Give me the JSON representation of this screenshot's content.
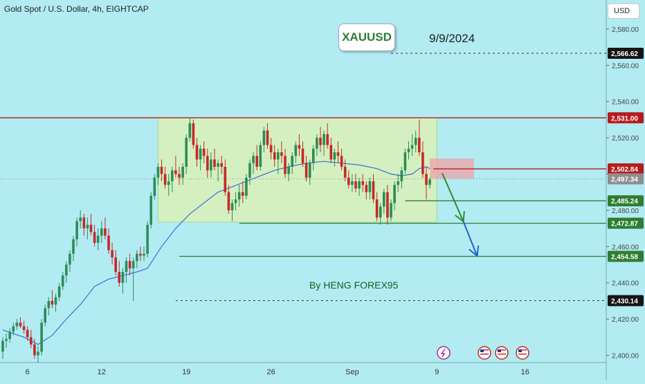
{
  "chart_title": "Gold Spot / U.S. Dollar, 4h, EIGHTCAP",
  "currency_label": "USD",
  "symbol_label": "XAUUSD",
  "date_label": "9/9/2024",
  "author_label": "By HENG FOREX95",
  "colors": {
    "background": "#b2ebf2",
    "up": "#2e8b57",
    "down": "#c62828",
    "ma": "#3b6fd6",
    "range_box": "#d4f0c0",
    "resistance": "#b71c1c",
    "support": "#2e7d32"
  },
  "event_icons": [
    "lightning-icon",
    "us-flag-icon",
    "us-flag-icon",
    "us-flag-icon"
  ],
  "chart_data": {
    "type": "candlestick",
    "title": "Gold Spot / U.S. Dollar, 4h, EIGHTCAP",
    "ylim": [
      2396,
      2596
    ],
    "y_ticks": [
      "2,400.00",
      "2,420.00",
      "2,440.00",
      "2,460.00",
      "2,480.00",
      "2,500.00",
      "2,520.00",
      "2,540.00",
      "2,560.00",
      "2,580.00"
    ],
    "x_ticks": [
      "6",
      "12",
      "19",
      "26",
      "Sep",
      "9",
      "16"
    ],
    "price_levels": [
      {
        "label": "2,566.62",
        "value": 2566.62,
        "style": "dotted",
        "kind": "dark"
      },
      {
        "label": "2,531.00",
        "value": 2531.0,
        "style": "solid",
        "kind": "resistance"
      },
      {
        "label": "2,502.84",
        "value": 2502.84,
        "style": "solid",
        "kind": "resistance"
      },
      {
        "label": "2,497.34",
        "value": 2497.34,
        "style": "dotted",
        "kind": "current"
      },
      {
        "label": "2,485.24",
        "value": 2485.24,
        "style": "solid",
        "kind": "support"
      },
      {
        "label": "2,472.87",
        "value": 2472.87,
        "style": "solid",
        "kind": "support"
      },
      {
        "label": "2,454.58",
        "value": 2454.58,
        "style": "solid",
        "kind": "support"
      },
      {
        "label": "2,430.14",
        "value": 2430.14,
        "style": "dotted",
        "kind": "dark"
      }
    ],
    "ohlc": [
      [
        2402,
        2410,
        2398,
        2408
      ],
      [
        2408,
        2412,
        2404,
        2409
      ],
      [
        2409,
        2415,
        2407,
        2413
      ],
      [
        2413,
        2418,
        2411,
        2416
      ],
      [
        2416,
        2420,
        2414,
        2418
      ],
      [
        2418,
        2421,
        2415,
        2416
      ],
      [
        2416,
        2419,
        2412,
        2414
      ],
      [
        2414,
        2416,
        2408,
        2410
      ],
      [
        2410,
        2414,
        2404,
        2406
      ],
      [
        2406,
        2409,
        2398,
        2400
      ],
      [
        2400,
        2405,
        2396,
        2402
      ],
      [
        2402,
        2420,
        2400,
        2418
      ],
      [
        2418,
        2428,
        2416,
        2426
      ],
      [
        2426,
        2432,
        2422,
        2430
      ],
      [
        2430,
        2436,
        2426,
        2428
      ],
      [
        2428,
        2434,
        2424,
        2432
      ],
      [
        2432,
        2440,
        2430,
        2438
      ],
      [
        2438,
        2446,
        2436,
        2444
      ],
      [
        2444,
        2452,
        2440,
        2450
      ],
      [
        2450,
        2458,
        2446,
        2456
      ],
      [
        2456,
        2466,
        2452,
        2464
      ],
      [
        2464,
        2476,
        2460,
        2474
      ],
      [
        2474,
        2480,
        2470,
        2476
      ],
      [
        2476,
        2478,
        2466,
        2470
      ],
      [
        2470,
        2476,
        2464,
        2472
      ],
      [
        2472,
        2478,
        2466,
        2468
      ],
      [
        2468,
        2472,
        2460,
        2462
      ],
      [
        2462,
        2470,
        2458,
        2466
      ],
      [
        2466,
        2474,
        2462,
        2470
      ],
      [
        2470,
        2476,
        2464,
        2466
      ],
      [
        2466,
        2470,
        2456,
        2458
      ],
      [
        2458,
        2462,
        2450,
        2454
      ],
      [
        2454,
        2458,
        2444,
        2446
      ],
      [
        2446,
        2452,
        2438,
        2440
      ],
      [
        2440,
        2448,
        2434,
        2446
      ],
      [
        2446,
        2454,
        2440,
        2452
      ],
      [
        2452,
        2456,
        2444,
        2448
      ],
      [
        2448,
        2454,
        2430,
        2452
      ],
      [
        2452,
        2458,
        2448,
        2456
      ],
      [
        2456,
        2460,
        2452,
        2455
      ],
      [
        2455,
        2460,
        2452,
        2456
      ],
      [
        2456,
        2474,
        2454,
        2472
      ],
      [
        2472,
        2490,
        2470,
        2488
      ],
      [
        2488,
        2500,
        2486,
        2498
      ],
      [
        2498,
        2506,
        2494,
        2504
      ],
      [
        2504,
        2508,
        2496,
        2500
      ],
      [
        2500,
        2504,
        2492,
        2494
      ],
      [
        2494,
        2500,
        2488,
        2496
      ],
      [
        2496,
        2504,
        2490,
        2502
      ],
      [
        2502,
        2510,
        2498,
        2500
      ],
      [
        2500,
        2504,
        2494,
        2498
      ],
      [
        2498,
        2506,
        2494,
        2504
      ],
      [
        2504,
        2522,
        2500,
        2520
      ],
      [
        2520,
        2531,
        2518,
        2528
      ],
      [
        2528,
        2530,
        2514,
        2516
      ],
      [
        2516,
        2520,
        2504,
        2508
      ],
      [
        2508,
        2516,
        2502,
        2514
      ],
      [
        2514,
        2518,
        2506,
        2510
      ],
      [
        2510,
        2514,
        2498,
        2502
      ],
      [
        2502,
        2512,
        2498,
        2508
      ],
      [
        2508,
        2514,
        2502,
        2504
      ],
      [
        2504,
        2508,
        2496,
        2506
      ],
      [
        2506,
        2510,
        2500,
        2504
      ],
      [
        2504,
        2508,
        2488,
        2490
      ],
      [
        2490,
        2494,
        2478,
        2480
      ],
      [
        2480,
        2486,
        2474,
        2484
      ],
      [
        2484,
        2490,
        2480,
        2486
      ],
      [
        2486,
        2494,
        2482,
        2490
      ],
      [
        2490,
        2496,
        2484,
        2488
      ],
      [
        2488,
        2500,
        2486,
        2498
      ],
      [
        2498,
        2508,
        2494,
        2506
      ],
      [
        2506,
        2512,
        2500,
        2510
      ],
      [
        2510,
        2516,
        2502,
        2504
      ],
      [
        2504,
        2518,
        2502,
        2516
      ],
      [
        2516,
        2526,
        2512,
        2524
      ],
      [
        2524,
        2528,
        2514,
        2516
      ],
      [
        2516,
        2520,
        2508,
        2512
      ],
      [
        2512,
        2516,
        2504,
        2508
      ],
      [
        2508,
        2514,
        2500,
        2512
      ],
      [
        2512,
        2518,
        2506,
        2510
      ],
      [
        2510,
        2514,
        2498,
        2500
      ],
      [
        2500,
        2506,
        2496,
        2504
      ],
      [
        2504,
        2512,
        2500,
        2510
      ],
      [
        2510,
        2518,
        2506,
        2516
      ],
      [
        2516,
        2522,
        2510,
        2514
      ],
      [
        2514,
        2518,
        2504,
        2506
      ],
      [
        2506,
        2510,
        2496,
        2498
      ],
      [
        2498,
        2508,
        2494,
        2506
      ],
      [
        2506,
        2516,
        2502,
        2514
      ],
      [
        2514,
        2522,
        2510,
        2520
      ],
      [
        2520,
        2526,
        2512,
        2516
      ],
      [
        2516,
        2524,
        2510,
        2522
      ],
      [
        2522,
        2528,
        2514,
        2516
      ],
      [
        2516,
        2520,
        2506,
        2508
      ],
      [
        2508,
        2514,
        2504,
        2512
      ],
      [
        2512,
        2518,
        2506,
        2510
      ],
      [
        2510,
        2514,
        2502,
        2504
      ],
      [
        2504,
        2508,
        2496,
        2498
      ],
      [
        2498,
        2502,
        2492,
        2494
      ],
      [
        2494,
        2500,
        2490,
        2496
      ],
      [
        2496,
        2500,
        2490,
        2492
      ],
      [
        2492,
        2498,
        2488,
        2496
      ],
      [
        2496,
        2500,
        2490,
        2494
      ],
      [
        2494,
        2496,
        2486,
        2490
      ],
      [
        2490,
        2498,
        2486,
        2496
      ],
      [
        2496,
        2500,
        2484,
        2486
      ],
      [
        2486,
        2490,
        2474,
        2476
      ],
      [
        2476,
        2484,
        2472,
        2482
      ],
      [
        2482,
        2492,
        2478,
        2490
      ],
      [
        2490,
        2494,
        2472,
        2476
      ],
      [
        2476,
        2486,
        2474,
        2484
      ],
      [
        2484,
        2496,
        2480,
        2494
      ],
      [
        2494,
        2500,
        2490,
        2496
      ],
      [
        2496,
        2504,
        2492,
        2502
      ],
      [
        2502,
        2514,
        2500,
        2512
      ],
      [
        2512,
        2518,
        2508,
        2514
      ],
      [
        2514,
        2522,
        2510,
        2516
      ],
      [
        2516,
        2524,
        2512,
        2520
      ],
      [
        2520,
        2530,
        2510,
        2512
      ],
      [
        2512,
        2518,
        2498,
        2500
      ],
      [
        2500,
        2504,
        2486,
        2494
      ],
      [
        2494,
        2498,
        2492,
        2497
      ]
    ],
    "ma": [
      [
        0,
        2414
      ],
      [
        6,
        2410
      ],
      [
        10,
        2406
      ],
      [
        14,
        2411
      ],
      [
        18,
        2420
      ],
      [
        22,
        2428
      ],
      [
        26,
        2438
      ],
      [
        30,
        2442
      ],
      [
        34,
        2444
      ],
      [
        38,
        2446
      ],
      [
        41,
        2448
      ],
      [
        45,
        2460
      ],
      [
        49,
        2470
      ],
      [
        53,
        2478
      ],
      [
        57,
        2484
      ],
      [
        61,
        2490
      ],
      [
        65,
        2493
      ],
      [
        69,
        2496
      ],
      [
        73,
        2499
      ],
      [
        77,
        2502
      ],
      [
        81,
        2504
      ],
      [
        86,
        2506
      ],
      [
        91,
        2507
      ],
      [
        96,
        2506
      ],
      [
        101,
        2505
      ],
      [
        106,
        2503
      ],
      [
        110,
        2500
      ],
      [
        113,
        2499
      ],
      [
        116,
        2500
      ],
      [
        118,
        2503
      ],
      [
        120,
        2504
      ],
      [
        121,
        2503
      ]
    ]
  }
}
